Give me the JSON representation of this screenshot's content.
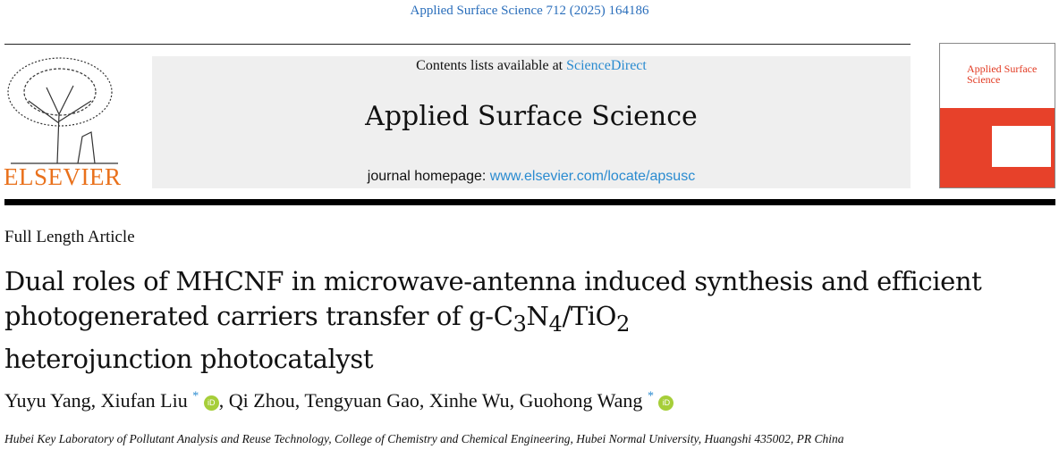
{
  "citation": "Applied Surface Science 712 (2025) 164186",
  "header": {
    "contents_prefix": "Contents lists available at ",
    "contents_link": "ScienceDirect",
    "journal_name": "Applied Surface Science",
    "homepage_prefix": "journal homepage: ",
    "homepage_link": "www.elsevier.com/locate/apsusc",
    "publisher_logo": "ELSEVIER",
    "cover_title": "Applied Surface Science"
  },
  "article": {
    "type": "Full Length Article",
    "title_line1": "Dual roles of MHCNF in microwave-antenna induced synthesis and efficient",
    "title_line2_a": "photogenerated carriers transfer of g-C",
    "sub3": "3",
    "N": "N",
    "sub4": "4",
    "slash": "/TiO",
    "sub2": "2",
    "title_line3": "heterojunction photocatalyst",
    "authors": [
      "Yuyu Yang",
      "Xiufan Liu",
      "Qi Zhou",
      "Tengyuan Gao",
      "Xinhe Wu",
      "Guohong Wang"
    ],
    "corresponding_mark": "*",
    "orcid": "iD",
    "affiliation": "Hubei Key Laboratory of Pollutant Analysis and Reuse Technology, College of Chemistry and Chemical Engineering, Hubei Normal University, Huangshi 435002, PR China"
  },
  "colors": {
    "link": "#2a8bd0",
    "elsevier": "#e9711c",
    "orcid": "#a6ce39"
  }
}
